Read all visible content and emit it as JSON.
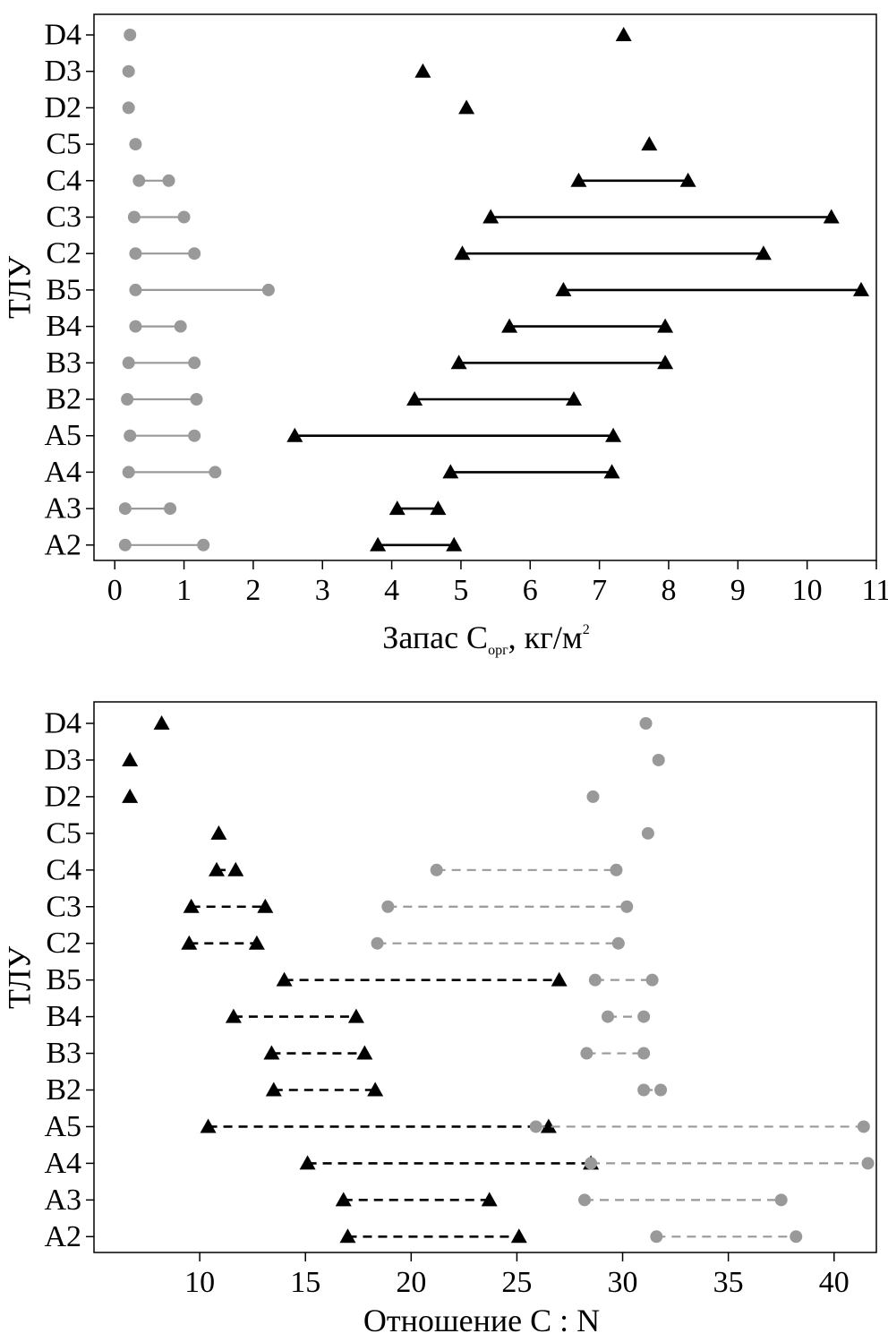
{
  "chart_data": [
    {
      "type": "dumbbell",
      "categories": [
        "D4",
        "D3",
        "D2",
        "C5",
        "C4",
        "C3",
        "C2",
        "B5",
        "B4",
        "B3",
        "B2",
        "A5",
        "A4",
        "A3",
        "A2"
      ],
      "ylabel": "ТЛУ",
      "xlabel": {
        "main": "Запас C",
        "sub": "орг",
        "rest": ", кг/м",
        "sup": "2"
      },
      "xlim": [
        -0.3,
        11.0
      ],
      "xticks": [
        0,
        1,
        2,
        3,
        4,
        5,
        6,
        7,
        8,
        9,
        10,
        11
      ],
      "series": [
        {
          "name": "gray circles",
          "color": "#999999",
          "marker": "circle",
          "line": "solid",
          "ranges": [
            [
              0.22,
              0.22
            ],
            [
              0.2,
              0.2
            ],
            [
              0.2,
              0.2
            ],
            [
              0.3,
              0.3
            ],
            [
              0.35,
              0.78
            ],
            [
              0.28,
              1.0
            ],
            [
              0.3,
              1.15
            ],
            [
              0.3,
              2.22
            ],
            [
              0.3,
              0.95
            ],
            [
              0.2,
              1.15
            ],
            [
              0.18,
              1.18
            ],
            [
              0.22,
              1.15
            ],
            [
              0.2,
              1.45
            ],
            [
              0.15,
              0.8
            ],
            [
              0.15,
              1.28
            ]
          ]
        },
        {
          "name": "black triangles",
          "color": "#000000",
          "marker": "triangle",
          "line": "solid",
          "ranges": [
            [
              7.35,
              7.35
            ],
            [
              4.45,
              4.45
            ],
            [
              5.08,
              5.08
            ],
            [
              7.72,
              7.72
            ],
            [
              6.7,
              8.28
            ],
            [
              5.43,
              10.35
            ],
            [
              5.02,
              9.37
            ],
            [
              6.48,
              10.78
            ],
            [
              5.7,
              7.95
            ],
            [
              4.97,
              7.95
            ],
            [
              4.33,
              6.63
            ],
            [
              2.6,
              7.2
            ],
            [
              4.85,
              7.18
            ],
            [
              4.08,
              4.67
            ],
            [
              3.8,
              4.9
            ]
          ]
        }
      ]
    },
    {
      "type": "dumbbell",
      "categories": [
        "D4",
        "D3",
        "D2",
        "C5",
        "C4",
        "C3",
        "C2",
        "B5",
        "B4",
        "B3",
        "B2",
        "A5",
        "A4",
        "A3",
        "A2"
      ],
      "ylabel": "ТЛУ",
      "xlabel": {
        "main": "Отношение C : N"
      },
      "xlim": [
        5.0,
        42.0
      ],
      "xticks": [
        10,
        15,
        20,
        25,
        30,
        35,
        40
      ],
      "series": [
        {
          "name": "black triangles",
          "color": "#000000",
          "marker": "triangle",
          "line": "dashed",
          "ranges": [
            [
              8.2,
              8.2
            ],
            [
              6.7,
              6.7
            ],
            [
              6.7,
              6.7
            ],
            [
              10.9,
              10.9
            ],
            [
              10.8,
              11.7
            ],
            [
              9.6,
              13.1
            ],
            [
              9.5,
              12.7
            ],
            [
              14.0,
              27.0
            ],
            [
              11.6,
              17.4
            ],
            [
              13.4,
              17.8
            ],
            [
              13.5,
              18.3
            ],
            [
              10.4,
              26.5
            ],
            [
              15.1,
              28.5
            ],
            [
              16.8,
              23.7
            ],
            [
              17.0,
              25.1
            ]
          ]
        },
        {
          "name": "gray circles",
          "color": "#999999",
          "marker": "circle",
          "line": "dashed",
          "ranges": [
            [
              31.1,
              31.1
            ],
            [
              31.7,
              31.7
            ],
            [
              28.6,
              28.6
            ],
            [
              31.2,
              31.2
            ],
            [
              21.2,
              29.7
            ],
            [
              18.9,
              30.2
            ],
            [
              18.4,
              29.8
            ],
            [
              28.7,
              31.4
            ],
            [
              29.3,
              31.0
            ],
            [
              28.3,
              31.0
            ],
            [
              31.0,
              31.8
            ],
            [
              25.9,
              41.4
            ],
            [
              28.5,
              41.6
            ],
            [
              28.2,
              37.5
            ],
            [
              31.6,
              38.2
            ]
          ]
        }
      ]
    }
  ]
}
